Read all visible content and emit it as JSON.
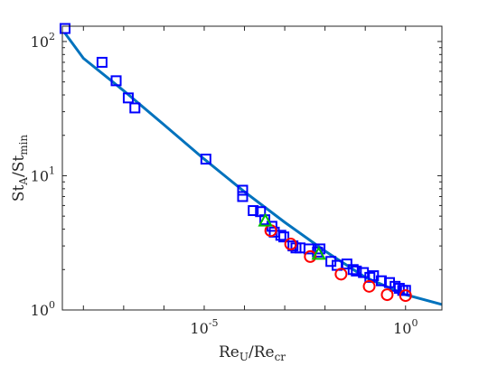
{
  "chart_data": {
    "type": "scatter",
    "xlabel": {
      "main": "Re",
      "sub": "U",
      "sep": "/Re",
      "sub2": "cr"
    },
    "ylabel": {
      "main": "St",
      "sub": "A",
      "sep": "/St",
      "sub2": "min"
    },
    "x_scale": "log",
    "y_scale": "log",
    "xlim": [
      3e-09,
      8.0
    ],
    "ylim": [
      1.0,
      130
    ],
    "x_ticks": [
      {
        "value": 1e-05,
        "base": "10",
        "exp": "-5"
      },
      {
        "value": 1,
        "base": "10",
        "exp": "0"
      }
    ],
    "y_ticks": [
      {
        "value": 1,
        "base": "10",
        "exp": "0"
      },
      {
        "value": 10,
        "base": "10",
        "exp": "1"
      },
      {
        "value": 100,
        "base": "10",
        "exp": "2"
      }
    ],
    "grid": false,
    "colors": {
      "fit_line": "#0072bd",
      "squares": "#0000ff",
      "circles": "#ff0000",
      "triangles": "#00c000"
    },
    "series": [
      {
        "marker": "line",
        "x": [
          3.5e-09,
          1e-08,
          1e-07,
          1e-06,
          1e-05,
          0.0001,
          0.001,
          0.01,
          0.1,
          1,
          8
        ],
        "y": [
          115,
          75,
          43,
          24,
          13.3,
          7.6,
          4.5,
          2.75,
          1.75,
          1.3,
          1.1
        ]
      },
      {
        "marker": "square",
        "x": [
          3.5e-09,
          2.9e-08,
          6.5e-08,
          1.3e-07,
          1.9e-07,
          1.1e-05,
          9e-05,
          9e-05,
          0.000165,
          0.00025,
          0.00032,
          0.00048,
          0.00055,
          0.0008,
          0.00095,
          0.0016,
          0.0019,
          0.0024,
          0.004,
          0.0065,
          0.0075,
          0.014,
          0.02,
          0.035,
          0.05,
          0.06,
          0.09,
          0.13,
          0.16,
          0.25,
          0.4,
          0.55,
          0.7,
          0.85,
          1.0
        ],
        "y": [
          125,
          70,
          51,
          38,
          32,
          13.3,
          7.8,
          7.0,
          5.5,
          5.4,
          4.7,
          4.2,
          3.8,
          3.6,
          3.5,
          3.0,
          2.9,
          2.9,
          2.85,
          2.7,
          2.85,
          2.3,
          2.15,
          2.2,
          2.0,
          1.95,
          1.9,
          1.75,
          1.8,
          1.65,
          1.6,
          1.5,
          1.45,
          1.4,
          1.4
        ]
      },
      {
        "marker": "circle",
        "x": [
          0.00045,
          0.0014,
          0.0043,
          0.025,
          0.125,
          0.35,
          1.0
        ],
        "y": [
          3.9,
          3.1,
          2.5,
          1.85,
          1.5,
          1.3,
          1.28
        ]
      },
      {
        "marker": "triangle",
        "x": [
          0.00033,
          0.007
        ],
        "y": [
          4.6,
          2.6
        ]
      }
    ]
  }
}
